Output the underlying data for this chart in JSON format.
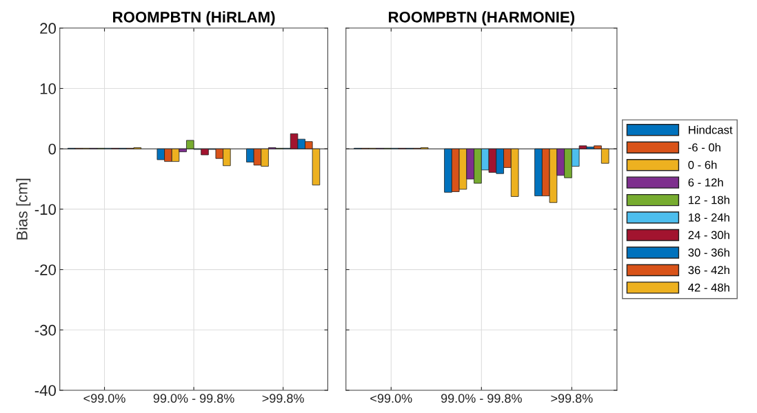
{
  "chart_data": [
    {
      "type": "bar",
      "title": "ROOMPBTN (HiRLAM)",
      "ylabel": "Bias [cm]",
      "categories": [
        "<99.0%",
        "99.0% - 99.8%",
        ">99.8%"
      ],
      "ylim": [
        -40,
        20
      ],
      "yticks": [
        -40,
        -30,
        -20,
        -10,
        0,
        10,
        20
      ],
      "grid": true,
      "legend": false,
      "series": [
        {
          "color": "#0072bd",
          "values": [
            0.1,
            -1.8,
            -2.2
          ]
        },
        {
          "color": "#d95319",
          "values": [
            0.1,
            -2.1,
            -2.7
          ]
        },
        {
          "color": "#edb120",
          "values": [
            0.1,
            -2.1,
            -2.9
          ]
        },
        {
          "color": "#7e2f8e",
          "values": [
            0.1,
            -0.5,
            0.2
          ]
        },
        {
          "color": "#77ac30",
          "values": [
            0.1,
            1.4,
            0.1
          ]
        },
        {
          "color": "#4dbeee",
          "values": [
            0.1,
            -0.1,
            0.1
          ]
        },
        {
          "color": "#a2142f",
          "values": [
            0.1,
            -1.0,
            2.5
          ]
        },
        {
          "color": "#0072bd",
          "values": [
            0.1,
            -0.1,
            1.6
          ]
        },
        {
          "color": "#d95319",
          "values": [
            0.1,
            -1.6,
            1.2
          ]
        },
        {
          "color": "#edb120",
          "values": [
            0.2,
            -2.8,
            -6.0
          ]
        }
      ]
    },
    {
      "type": "bar",
      "title": "ROOMPBTN (HARMONIE)",
      "categories": [
        "<99.0%",
        "99.0% - 99.8%",
        ">99.8%"
      ],
      "ylim": [
        -40,
        20
      ],
      "yticks": [
        -40,
        -30,
        -20,
        -10,
        0,
        10,
        20
      ],
      "grid": true,
      "legend": "right",
      "tick_labels": "x",
      "series": [
        {
          "name": "Hindcast",
          "color": "#0072bd",
          "values": [
            0.1,
            -7.2,
            -7.8
          ]
        },
        {
          "name": "-6 - 0h",
          "color": "#d95319",
          "values": [
            0.1,
            -7.1,
            -7.8
          ]
        },
        {
          "name": "0 - 6h",
          "color": "#edb120",
          "values": [
            0.1,
            -6.7,
            -8.9
          ]
        },
        {
          "name": "6 - 12h",
          "color": "#7e2f8e",
          "values": [
            0.1,
            -5.0,
            -4.4
          ]
        },
        {
          "name": "12 - 18h",
          "color": "#77ac30",
          "values": [
            0.1,
            -5.7,
            -4.8
          ]
        },
        {
          "name": "18 - 24h",
          "color": "#4dbeee",
          "values": [
            0.1,
            -3.5,
            -2.9
          ]
        },
        {
          "name": "24 - 30h",
          "color": "#a2142f",
          "values": [
            0.1,
            -3.9,
            0.5
          ]
        },
        {
          "name": "30 - 36h",
          "color": "#0072bd",
          "values": [
            0.1,
            -4.1,
            0.3
          ]
        },
        {
          "name": "36 - 42h",
          "color": "#d95319",
          "values": [
            0.1,
            -3.1,
            0.5
          ]
        },
        {
          "name": "42 - 48h",
          "color": "#edb120",
          "values": [
            0.2,
            -7.9,
            -2.4
          ]
        }
      ]
    }
  ]
}
